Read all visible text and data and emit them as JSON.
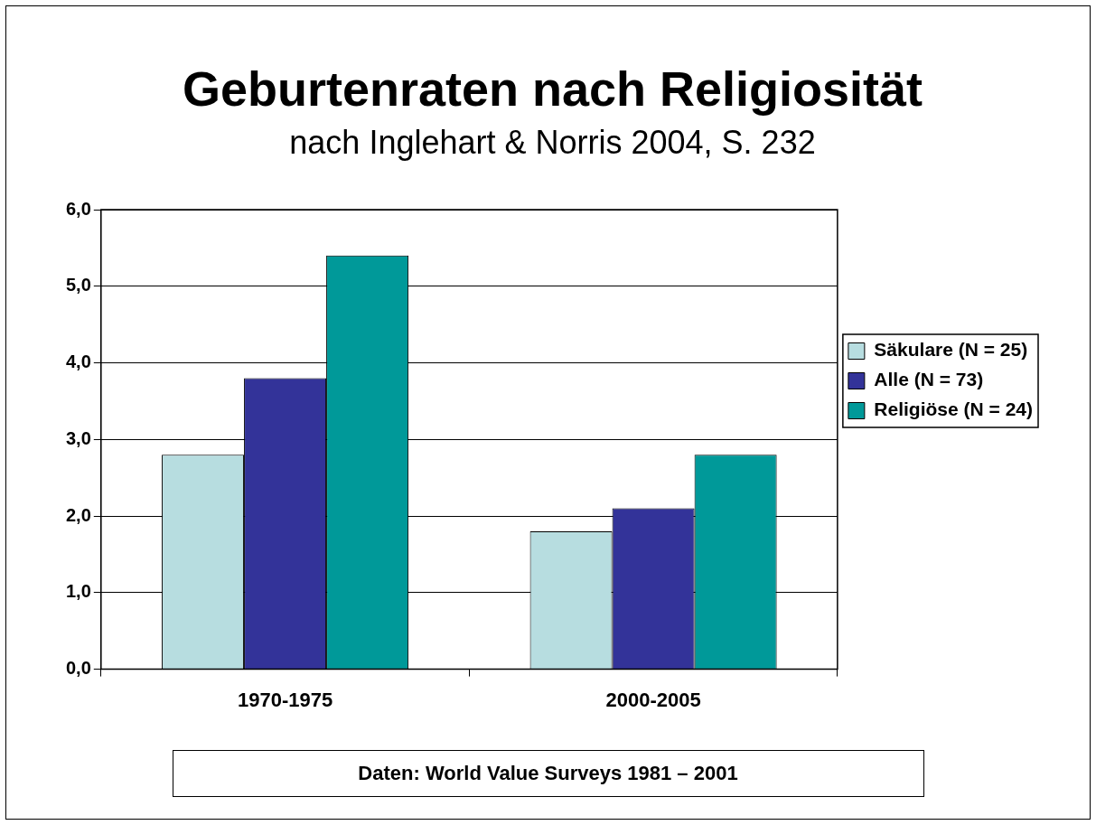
{
  "chart_data": {
    "type": "bar",
    "title": "Geburtenraten nach Religiosität",
    "subtitle": "nach Inglehart & Norris 2004, S. 232",
    "categories": [
      "1970-1975",
      "2000-2005"
    ],
    "series": [
      {
        "name": "Säkulare (N = 25)",
        "color": "#b7dde0",
        "values": [
          2.8,
          1.8
        ]
      },
      {
        "name": "Alle (N = 73)",
        "color": "#333399",
        "values": [
          3.8,
          2.1
        ]
      },
      {
        "name": "Religiöse (N = 24)",
        "color": "#009999",
        "values": [
          5.4,
          2.8
        ]
      }
    ],
    "ylim": [
      0,
      6
    ],
    "yticks": [
      {
        "value": 0,
        "label": "0,0"
      },
      {
        "value": 1,
        "label": "1,0"
      },
      {
        "value": 2,
        "label": "2,0"
      },
      {
        "value": 3,
        "label": "3,0"
      },
      {
        "value": 4,
        "label": "4,0"
      },
      {
        "value": 5,
        "label": "5,0"
      },
      {
        "value": 6,
        "label": "6,0"
      }
    ],
    "grid": "y",
    "legend": "right",
    "annotations": [
      "Daten: World Value Surveys 1981 – 2001"
    ]
  }
}
